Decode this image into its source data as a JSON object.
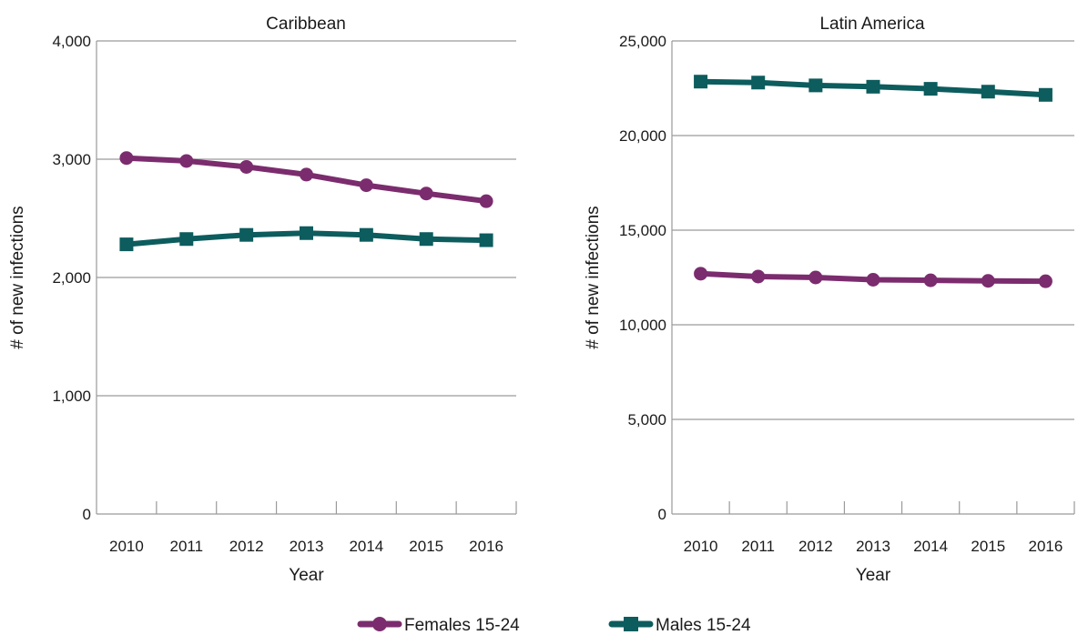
{
  "chart_data": [
    {
      "type": "line",
      "title": "Caribbean",
      "xlabel": "Year",
      "ylabel": "# of new infections",
      "categories": [
        "2010",
        "2011",
        "2012",
        "2013",
        "2014",
        "2015",
        "2016"
      ],
      "ylim": [
        0,
        4000
      ],
      "yticks": [
        0,
        1000,
        2000,
        3000,
        4000
      ],
      "ytick_labels": [
        "0",
        "1,000",
        "2,000",
        "3,000",
        "4,000"
      ],
      "grid": true,
      "series": [
        {
          "name": "Females 15-24",
          "color": "#7b2c6e",
          "marker": "circle",
          "values": [
            3010,
            2985,
            2935,
            2870,
            2780,
            2710,
            2645
          ]
        },
        {
          "name": "Males 15-24",
          "color": "#0d5c5e",
          "marker": "square",
          "values": [
            2280,
            2325,
            2360,
            2375,
            2360,
            2325,
            2315
          ]
        }
      ]
    },
    {
      "type": "line",
      "title": "Latin America",
      "xlabel": "Year",
      "ylabel": "# of new infections",
      "categories": [
        "2010",
        "2011",
        "2012",
        "2013",
        "2014",
        "2015",
        "2016"
      ],
      "ylim": [
        0,
        25000
      ],
      "yticks": [
        0,
        5000,
        10000,
        15000,
        20000,
        25000
      ],
      "ytick_labels": [
        "0",
        "5,000",
        "10,000",
        "15,000",
        "20,000",
        "25,000"
      ],
      "grid": true,
      "series": [
        {
          "name": "Females 15-24",
          "color": "#7b2c6e",
          "marker": "circle",
          "values": [
            12700,
            12550,
            12500,
            12380,
            12350,
            12320,
            12300
          ]
        },
        {
          "name": "Males 15-24",
          "color": "#0d5c5e",
          "marker": "square",
          "values": [
            22850,
            22800,
            22650,
            22580,
            22470,
            22320,
            22150
          ]
        }
      ]
    }
  ],
  "legend": {
    "placement": "bottom-center",
    "items": [
      {
        "label": "Females 15-24",
        "color": "#7b2c6e",
        "marker": "circle"
      },
      {
        "label": "Males 15-24",
        "color": "#0d5c5e",
        "marker": "square"
      }
    ]
  }
}
